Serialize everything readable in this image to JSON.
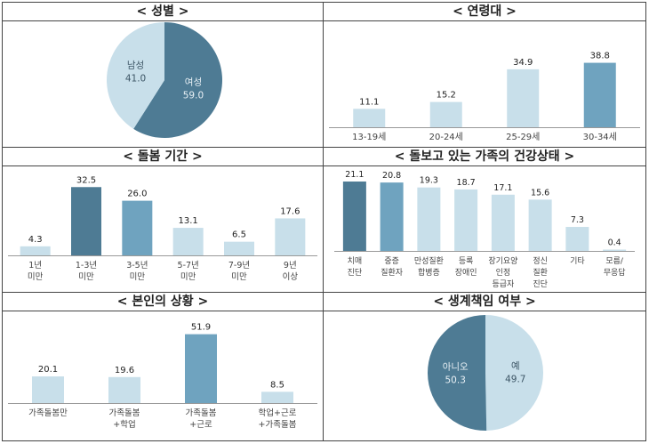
{
  "colors": {
    "dark": "#4e7b94",
    "mid": "#6fa3bf",
    "light": "#c8dfea",
    "axis": "#999999",
    "text": "#222222",
    "tickText": "#444444"
  },
  "chart_data": [
    {
      "id": "gender",
      "type": "pie",
      "title": "< 성별 >",
      "slices": [
        {
          "label": "여성",
          "value": 59.0,
          "valueText": "59.0",
          "color": "#4e7b94",
          "textColor": "#e8f0f5"
        },
        {
          "label": "남성",
          "value": 41.0,
          "valueText": "41.0",
          "color": "#c8dfea",
          "textColor": "#3d5666"
        }
      ]
    },
    {
      "id": "age",
      "type": "bar",
      "title": "< 연령대 >",
      "ylim": [
        0,
        45
      ],
      "categories": [
        [
          "13-19세"
        ],
        [
          "20-24세"
        ],
        [
          "25-29세"
        ],
        [
          "30-34세"
        ]
      ],
      "values": [
        11.1,
        15.2,
        34.9,
        38.8
      ],
      "colorKeys": [
        "light",
        "light",
        "light",
        "mid"
      ]
    },
    {
      "id": "duration",
      "type": "bar",
      "title": "< 돌봄 기간 >",
      "ylim": [
        0,
        36
      ],
      "categories": [
        [
          "1년",
          "미만"
        ],
        [
          "1-3년",
          "미만"
        ],
        [
          "3-5년",
          "미만"
        ],
        [
          "5-7년",
          "미만"
        ],
        [
          "7-9년",
          "미만"
        ],
        [
          "9년",
          "이상"
        ]
      ],
      "values": [
        4.3,
        32.5,
        26.0,
        13.1,
        6.5,
        17.6
      ],
      "colorKeys": [
        "light",
        "dark",
        "mid",
        "light",
        "light",
        "light"
      ]
    },
    {
      "id": "health",
      "type": "bar",
      "title": "< 돌보고 있는 가족의 건강상태 >",
      "ylim": [
        0,
        23
      ],
      "categories": [
        [
          "치매",
          "진단"
        ],
        [
          "중증",
          "질환자"
        ],
        [
          "만성질환",
          "합병증"
        ],
        [
          "등록",
          "장애인"
        ],
        [
          "장기요양",
          "인정",
          "등급자"
        ],
        [
          "정신",
          "질환",
          "진단"
        ],
        [
          "기타"
        ],
        [
          "모름/",
          "무응답"
        ]
      ],
      "values": [
        21.1,
        20.8,
        19.3,
        18.7,
        17.1,
        15.6,
        7.3,
        0.4
      ],
      "colorKeys": [
        "dark",
        "mid",
        "light",
        "light",
        "light",
        "light",
        "light",
        "light"
      ]
    },
    {
      "id": "situation",
      "type": "bar",
      "title": "< 본인의 상황 >",
      "ylim": [
        0,
        57
      ],
      "categories": [
        [
          "가족돌봄만"
        ],
        [
          "가족돌봄",
          "+학업"
        ],
        [
          "가족돌봄",
          "+근로"
        ],
        [
          "학업+근로",
          "+가족돌봄"
        ]
      ],
      "values": [
        20.1,
        19.6,
        51.9,
        8.5
      ],
      "colorKeys": [
        "light",
        "light",
        "mid",
        "light"
      ]
    },
    {
      "id": "breadwinner",
      "type": "pie",
      "title": "< 생계책임 여부 >",
      "slices": [
        {
          "label": "예",
          "value": 49.7,
          "valueText": "49.7",
          "color": "#c8dfea",
          "textColor": "#3d5666"
        },
        {
          "label": "아니오",
          "value": 50.3,
          "valueText": "50.3",
          "color": "#4e7b94",
          "textColor": "#e8f0f5"
        }
      ]
    }
  ]
}
